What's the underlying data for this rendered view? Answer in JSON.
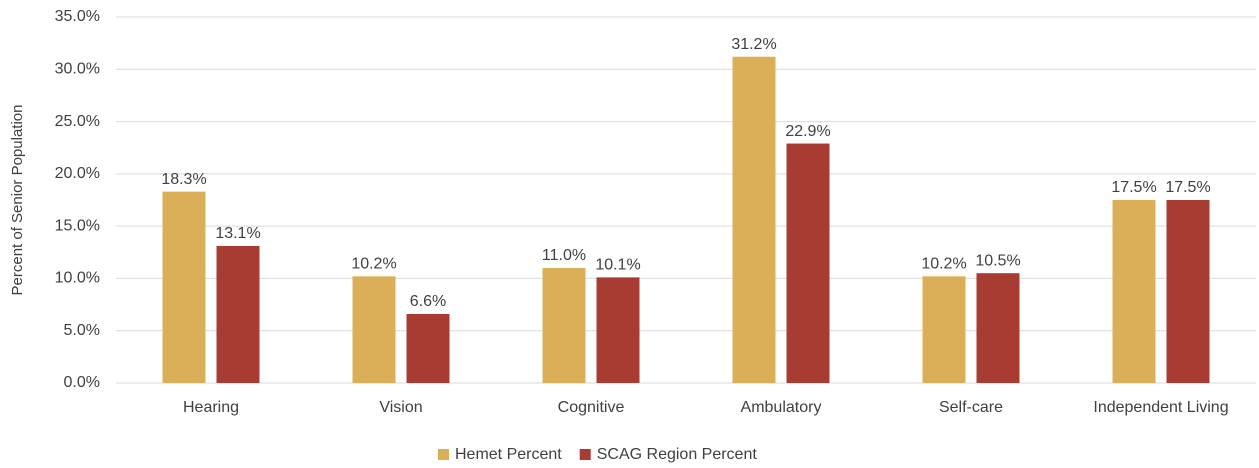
{
  "chart_data": {
    "type": "bar",
    "y_label": "Percent of Senior Population",
    "categories": [
      "Hearing",
      "Vision",
      "Cognitive",
      "Ambulatory",
      "Self-care",
      "Independent Living"
    ],
    "series": [
      {
        "name": "Hemet Percent",
        "color": "#dbaf57",
        "values": [
          18.3,
          10.2,
          11.0,
          31.2,
          10.2,
          17.5
        ],
        "value_labels": [
          "18.3%",
          "10.2%",
          "11.0%",
          "31.2%",
          "10.2%",
          "17.5%"
        ]
      },
      {
        "name": "SCAG Region Percent",
        "color": "#a93c32",
        "values": [
          13.1,
          6.6,
          10.1,
          22.9,
          10.5,
          17.5
        ],
        "value_labels": [
          "13.1%",
          "6.6%",
          "10.1%",
          "22.9%",
          "10.5%",
          "17.5%"
        ]
      }
    ],
    "ylim": [
      0,
      35
    ],
    "yticks": [
      {
        "value": 0,
        "label": "0.0%"
      },
      {
        "value": 5,
        "label": "5.0%"
      },
      {
        "value": 10,
        "label": "10.0%"
      },
      {
        "value": 15,
        "label": "15.0%"
      },
      {
        "value": 20,
        "label": "20.0%"
      },
      {
        "value": 25,
        "label": "25.0%"
      },
      {
        "value": 30,
        "label": "30.0%"
      },
      {
        "value": 35,
        "label": "35.0%"
      }
    ],
    "grid": true,
    "legend": "bottom"
  }
}
